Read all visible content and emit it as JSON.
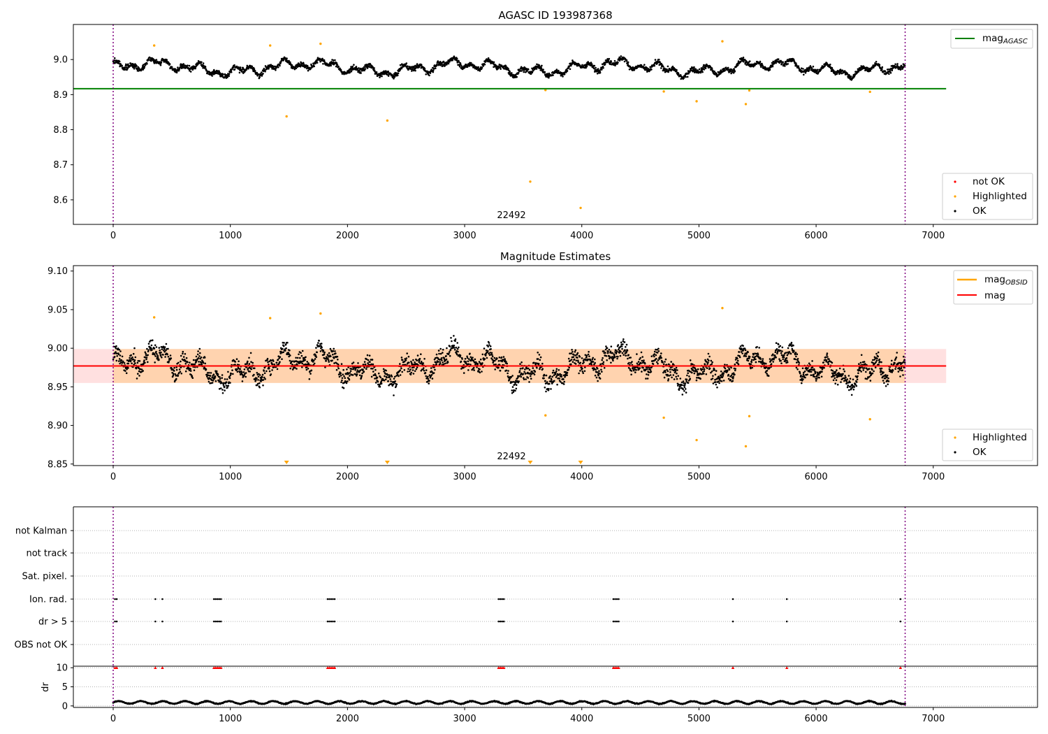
{
  "chart_data": [
    {
      "type": "scatter",
      "title": "AGASC ID 193987368",
      "xlim": [
        -340,
        7890
      ],
      "ylim": [
        8.53,
        9.1
      ],
      "xticks": [
        "0",
        "1000",
        "2000",
        "3000",
        "4000",
        "5000",
        "6000",
        "7000"
      ],
      "yticks": [
        "9.0",
        "8.9",
        "8.8",
        "8.7",
        "8.6"
      ],
      "vlines": [
        0,
        6760
      ],
      "hline": {
        "name": "mag_AGASC",
        "label_main": "mag",
        "label_sub": "AGASC",
        "y": 8.917,
        "x_end": 7110,
        "color": "#008000"
      },
      "annotation": {
        "text": "22492",
        "x": 3350,
        "y": 8.547
      },
      "legend_points": [
        {
          "name": "not OK",
          "color": "#ff0000"
        },
        {
          "name": "Highlighted",
          "color": "#ffa500"
        },
        {
          "name": "OK",
          "color": "#000000"
        }
      ],
      "highlighted": [
        [
          350,
          9.04
        ],
        [
          1340,
          9.04
        ],
        [
          1480,
          8.838
        ],
        [
          1770,
          9.045
        ],
        [
          2340,
          8.826
        ],
        [
          3560,
          8.652
        ],
        [
          3690,
          8.913
        ],
        [
          3990,
          8.577
        ],
        [
          4700,
          8.909
        ],
        [
          4980,
          8.881
        ],
        [
          5200,
          9.052
        ],
        [
          5400,
          8.873
        ],
        [
          5430,
          8.912
        ],
        [
          6460,
          8.908
        ]
      ]
    },
    {
      "type": "scatter",
      "title": "Magnitude Estimates",
      "xlim": [
        -340,
        7890
      ],
      "ylim": [
        8.848,
        9.107
      ],
      "xticks": [
        "0",
        "1000",
        "2000",
        "3000",
        "4000",
        "5000",
        "6000",
        "7000"
      ],
      "yticks": [
        "9.10",
        "9.05",
        "9.00",
        "8.95",
        "8.90",
        "8.85"
      ],
      "vlines": [
        0,
        6760
      ],
      "mag": {
        "label": "mag",
        "y": 8.977,
        "band": [
          8.955,
          8.999
        ],
        "x_end": 7110,
        "color": "#ff0000"
      },
      "mag_obsid": {
        "label_main": "mag",
        "label_sub": "OBSID",
        "color": "#ffa500"
      },
      "annotation": {
        "text": "22492",
        "x": 3350,
        "y": 8.858
      },
      "legend_points": [
        {
          "name": "Highlighted",
          "color": "#ffa500"
        },
        {
          "name": "OK",
          "color": "#000000"
        }
      ],
      "highlighted": [
        [
          350,
          9.04
        ],
        [
          1340,
          9.039
        ],
        [
          1770,
          9.045
        ],
        [
          3690,
          8.913
        ],
        [
          4700,
          8.91
        ],
        [
          4980,
          8.881
        ],
        [
          5200,
          9.052
        ],
        [
          5400,
          8.873
        ],
        [
          5430,
          8.912
        ],
        [
          6460,
          8.908
        ]
      ],
      "below_range_markers": [
        1480,
        2340,
        3560,
        3990
      ]
    },
    {
      "type": "scatter",
      "title": "",
      "xlim": [
        -340,
        7890
      ],
      "categories": [
        "not Kalman",
        "not track",
        "Sat. pixel.",
        "Ion. rad.",
        "dr > 5",
        "OBS not OK"
      ],
      "vlines": [
        0,
        6760
      ],
      "flag_times": {
        "Ion. rad.": [
          15,
          30,
          360,
          420,
          860,
          875,
          890,
          905,
          920,
          1830,
          1845,
          1860,
          1875,
          1890,
          3290,
          3305,
          3320,
          3335,
          4270,
          4285,
          4300,
          4315,
          5290,
          5750,
          6720
        ],
        "dr > 5": [
          15,
          30,
          360,
          420,
          860,
          875,
          890,
          905,
          920,
          1830,
          1845,
          1860,
          1875,
          1890,
          3290,
          3305,
          3320,
          3335,
          4270,
          4285,
          4300,
          4315,
          5290,
          5750,
          6720
        ]
      }
    },
    {
      "type": "scatter",
      "title": "",
      "ylabel": "dr",
      "xlim": [
        -340,
        7890
      ],
      "ylim": [
        -0.4,
        10.4
      ],
      "xticks": [
        "0",
        "1000",
        "2000",
        "3000",
        "4000",
        "5000",
        "6000",
        "7000"
      ],
      "yticks": [
        "10",
        "5",
        "0"
      ],
      "vlines": [
        0,
        6760
      ],
      "clipped_at_10": [
        15,
        30,
        360,
        420,
        860,
        875,
        890,
        905,
        920,
        1830,
        1845,
        1860,
        1875,
        1890,
        3290,
        3305,
        3320,
        3335,
        4270,
        4285,
        4300,
        4315,
        5290,
        5750,
        6720
      ]
    }
  ]
}
